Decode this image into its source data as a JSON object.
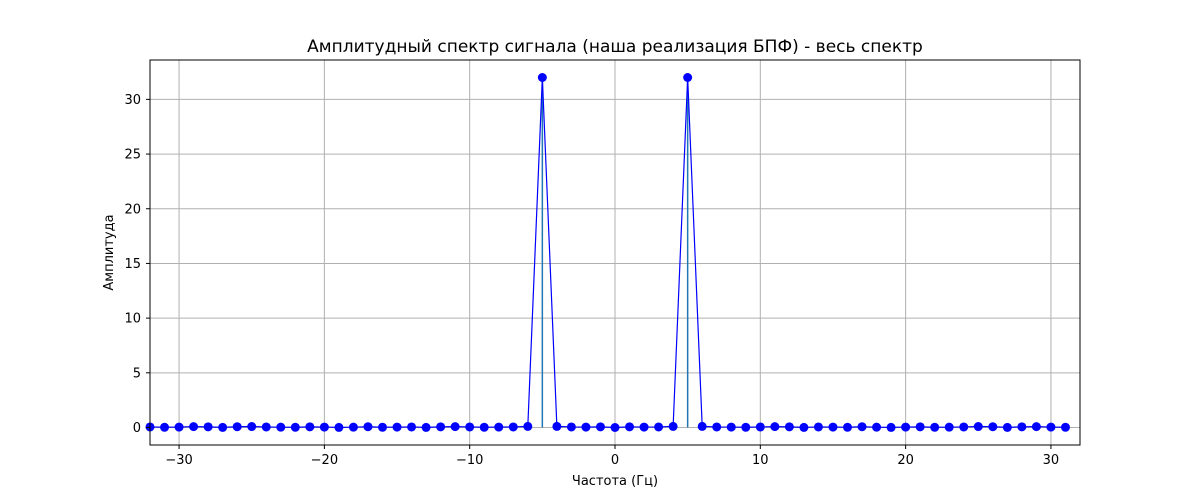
{
  "chart_data": {
    "type": "line",
    "title": "Амплитудный спектр сигнала (наша реализация БПФ) - весь спектр",
    "xlabel": "Частота (Гц)",
    "ylabel": "Амплитуда",
    "xlim": [
      -32,
      32
    ],
    "ylim": [
      -1.6,
      33.6
    ],
    "xticks": [
      -30,
      -20,
      -10,
      0,
      10,
      20,
      30
    ],
    "yticks": [
      0,
      5,
      10,
      15,
      20,
      25,
      30
    ],
    "xtick_labels": [
      "−30",
      "−20",
      "−10",
      "0",
      "10",
      "20",
      "30"
    ],
    "ytick_labels": [
      "0",
      "5",
      "10",
      "15",
      "20",
      "25",
      "30"
    ],
    "grid": true,
    "series": [
      {
        "color": "#0000ff",
        "marker": "circle",
        "stem_color": "#1f77b4",
        "x": [
          -32,
          -31,
          -30,
          -29,
          -28,
          -27,
          -26,
          -25,
          -24,
          -23,
          -22,
          -21,
          -20,
          -19,
          -18,
          -17,
          -16,
          -15,
          -14,
          -13,
          -12,
          -11,
          -10,
          -9,
          -8,
          -7,
          -6,
          -5,
          -4,
          -3,
          -2,
          -1,
          0,
          1,
          2,
          3,
          4,
          5,
          6,
          7,
          8,
          9,
          10,
          11,
          12,
          13,
          14,
          15,
          16,
          17,
          18,
          19,
          20,
          21,
          22,
          23,
          24,
          25,
          26,
          27,
          28,
          29,
          30,
          31
        ],
        "values": [
          0.05,
          0.02,
          0.04,
          0.08,
          0.06,
          0.01,
          0.07,
          0.09,
          0.05,
          0.03,
          0.02,
          0.06,
          0.04,
          0.01,
          0.03,
          0.07,
          0.02,
          0.04,
          0.05,
          0.01,
          0.06,
          0.08,
          0.05,
          0.02,
          0.04,
          0.05,
          0.1,
          32,
          0.1,
          0.05,
          0.04,
          0.06,
          0.0,
          0.06,
          0.04,
          0.05,
          0.1,
          32,
          0.1,
          0.05,
          0.04,
          0.02,
          0.05,
          0.08,
          0.06,
          0.01,
          0.05,
          0.04,
          0.02,
          0.07,
          0.03,
          0.01,
          0.04,
          0.06,
          0.02,
          0.03,
          0.05,
          0.09,
          0.07,
          0.01,
          0.06,
          0.08,
          0.04,
          0.02
        ],
        "stem_indices": [
          27,
          37
        ]
      }
    ]
  }
}
